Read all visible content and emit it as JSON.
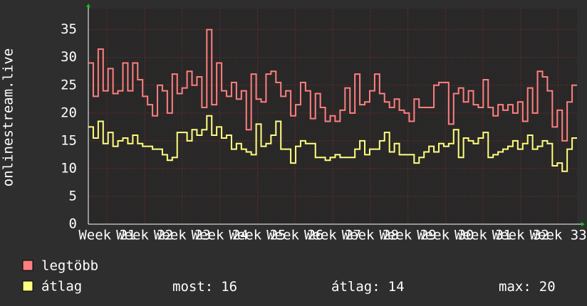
{
  "chart_data": {
    "type": "step-line",
    "y_label": "onlinestream.live",
    "ylim": [
      0,
      38.8
    ],
    "yticks": [
      0,
      5,
      10,
      15,
      20,
      25,
      30,
      35
    ],
    "xlim": [
      20.5,
      33.5
    ],
    "xticks": [
      {
        "value": 21,
        "label": "Week 21"
      },
      {
        "value": 22,
        "label": "Week 22"
      },
      {
        "value": 23,
        "label": "Week 23"
      },
      {
        "value": 24,
        "label": "Week 24"
      },
      {
        "value": 25,
        "label": "Week 25"
      },
      {
        "value": 26,
        "label": "Week 26"
      },
      {
        "value": 27,
        "label": "Week 27"
      },
      {
        "value": 28,
        "label": "Week 28"
      },
      {
        "value": 29,
        "label": "Week 29"
      },
      {
        "value": 30,
        "label": "Week 30"
      },
      {
        "value": 31,
        "label": "Week 31"
      },
      {
        "value": 32,
        "label": "Week 32"
      },
      {
        "value": 33,
        "label": "Week 33"
      }
    ],
    "grid": true,
    "series": [
      {
        "name": "legtöbb",
        "color": "#ff7f7f",
        "values": [
          29,
          23,
          31.5,
          24,
          28,
          23.5,
          24,
          29,
          24,
          29,
          26,
          23,
          21.5,
          19.5,
          25,
          24,
          20,
          27,
          23.5,
          24.5,
          27.5,
          25,
          26.5,
          21,
          35,
          21.5,
          29,
          24,
          23,
          25.5,
          22.5,
          24,
          17,
          27,
          22.5,
          22,
          27,
          27.5,
          25.5,
          23,
          24,
          19.5,
          21.5,
          25.5,
          24,
          19,
          23.5,
          21,
          18.5,
          19.5,
          18.5,
          20.5,
          24.5,
          20,
          27,
          21.5,
          22,
          24,
          27,
          23.5,
          22,
          21,
          22.5,
          20.5,
          20,
          18.5,
          22.5,
          21,
          21,
          21,
          25,
          25.5,
          25.5,
          18,
          23.5,
          24.5,
          22,
          24,
          21.5,
          21,
          26,
          21,
          19.5,
          21.5,
          20.5,
          21.5,
          20,
          22,
          18.5,
          24.5,
          20,
          27.5,
          26.5,
          24,
          17.5,
          20.5,
          15,
          22,
          25
        ]
      },
      {
        "name": "átlag",
        "color": "#ffff7f",
        "values": [
          17.5,
          15.5,
          18.5,
          14.5,
          16.5,
          14,
          15,
          15.5,
          14.5,
          16,
          14.5,
          14,
          14,
          13.5,
          13.5,
          12.5,
          11.5,
          12,
          16.5,
          16.5,
          15,
          17,
          16,
          17,
          19.5,
          16,
          17.5,
          15.5,
          16,
          13.5,
          14.5,
          13.5,
          13,
          12.5,
          18,
          14,
          14.5,
          16,
          18.5,
          13.5,
          13.5,
          11,
          14,
          15,
          14.5,
          14.5,
          12,
          12,
          11.5,
          12,
          12.5,
          12,
          12,
          12,
          13.5,
          15,
          12.5,
          13.5,
          13.5,
          15,
          16.5,
          13,
          14.5,
          12.5,
          12.5,
          12.5,
          11,
          12,
          13,
          14,
          13,
          14.5,
          14,
          14.5,
          17,
          12,
          15.5,
          15,
          14.5,
          15.5,
          16.5,
          12,
          12.5,
          13,
          13.5,
          14,
          15,
          13.5,
          14.5,
          16,
          13.5,
          14,
          15,
          14.5,
          10.5,
          11,
          9.5,
          13.5,
          15.5
        ]
      }
    ],
    "stats": [
      {
        "label": "most:",
        "value": 16
      },
      {
        "label": "átlag:",
        "value": 14
      },
      {
        "label": "max:",
        "value": 20
      }
    ]
  }
}
